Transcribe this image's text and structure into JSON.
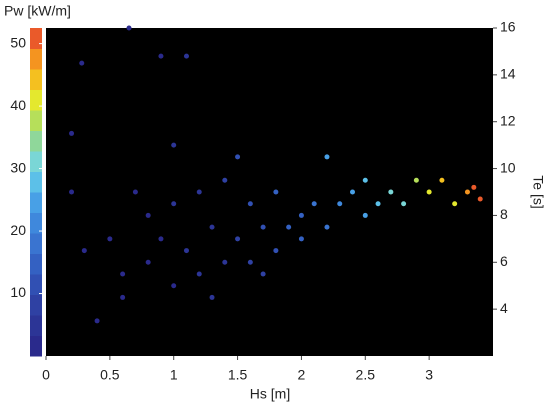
{
  "chart_data": {
    "type": "scatter",
    "x_label": "Hs [m]",
    "y_label": "Te [s]",
    "colorbar_label": "Pw [kW/m]",
    "xlim": [
      0,
      3.5
    ],
    "xticks": [
      0,
      0.5,
      1,
      1.5,
      2,
      2.5,
      3
    ],
    "ylim": [
      2,
      16
    ],
    "yticks": [
      4,
      6,
      8,
      10,
      12,
      14,
      16
    ],
    "clim": [
      0,
      52.5
    ],
    "cticks": [
      10,
      20,
      30,
      40,
      50
    ],
    "colormap": [
      "#2a2a8c",
      "#2c3596",
      "#2f41a3",
      "#3150b3",
      "#3461c2",
      "#3a74d0",
      "#3f88dc",
      "#48a0e6",
      "#5cc0e8",
      "#7ad6d6",
      "#8fd79a",
      "#b6df5a",
      "#e4e82e",
      "#f4c020",
      "#f49420",
      "#ea5a2a"
    ],
    "background": "#000000",
    "series": [
      {
        "x": [
          0.5,
          0.6,
          0.7,
          0.8,
          0.8,
          0.9,
          1.0,
          1.0,
          1.1,
          1.2,
          1.2,
          1.3,
          1.4,
          1.4,
          1.5,
          1.6,
          1.6,
          1.7,
          1.8,
          1.8,
          1.9,
          2.0,
          2.0,
          2.1,
          2.2,
          2.3,
          2.4,
          2.5,
          2.5,
          2.6,
          2.7,
          2.8,
          2.9,
          3.0,
          3.1,
          3.2,
          3.3,
          3.35,
          3.4,
          0.2,
          0.28,
          0.65,
          0.9,
          1.1,
          0.4,
          0.6,
          1.5,
          0.3,
          0.2,
          1.0,
          2.2,
          1.3,
          1.7
        ],
        "values": [
          7,
          5.5,
          9,
          6,
          8,
          7,
          5,
          8.5,
          6.5,
          9,
          5.5,
          7.5,
          6,
          9.5,
          7,
          8.5,
          6,
          7.5,
          6.5,
          9,
          7.5,
          8,
          7,
          8.5,
          7.5,
          8.5,
          9,
          8,
          9.5,
          8.5,
          9,
          8.5,
          9.5,
          9,
          9.5,
          8.5,
          9,
          9.2,
          8.7,
          11.5,
          14.5,
          16,
          14.8,
          14.8,
          3.5,
          4.5,
          10.5,
          6.5,
          9,
          11,
          10.5,
          4.5,
          5.5
        ],
        "c": [
          0.9,
          1.0,
          2.2,
          1.9,
          2.5,
          2.8,
          2.5,
          4.2,
          3.9,
          6.4,
          3.9,
          6.2,
          5.8,
          9.1,
          7.7,
          10.7,
          7.5,
          10.6,
          10.3,
          14.3,
          13.3,
          15.7,
          13.7,
          18.4,
          17.8,
          22,
          25.4,
          24.5,
          29.1,
          28.2,
          32.1,
          32.7,
          39.1,
          39.7,
          44.7,
          42.6,
          48,
          50.6,
          49.3,
          0.2,
          0.6,
          2.0,
          3.0,
          4.4,
          0.3,
          0.8,
          11.6,
          0.3,
          0.2,
          5.4,
          24.9,
          3.7,
          7.8
        ]
      }
    ]
  }
}
